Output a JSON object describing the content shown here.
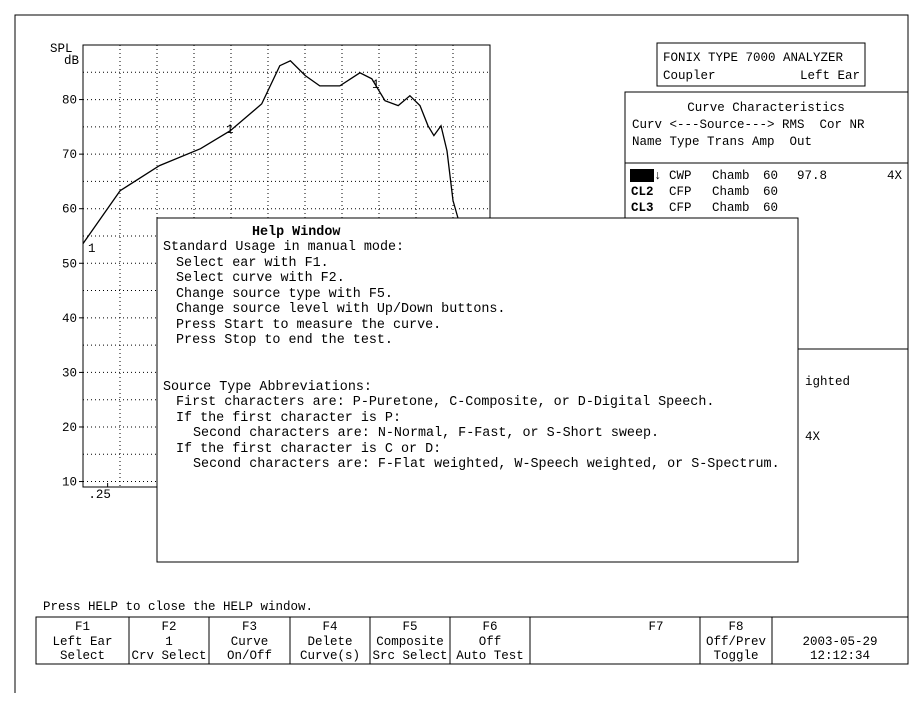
{
  "graph": {
    "y_label": [
      "SPL",
      "dB"
    ],
    "ylim": [
      9,
      90
    ],
    "yticks": [
      80,
      70,
      60,
      50,
      40,
      30,
      20,
      10
    ],
    "xlim": [
      0.2,
      8
    ],
    "xticks": [
      {
        "value": 0.25,
        "label": ".25"
      }
    ],
    "log_x": true,
    "curve": {
      "x": [
        0.2,
        0.28,
        0.4,
        0.58,
        0.76,
        1.01,
        1.19,
        1.31,
        1.5,
        1.71,
        2.05,
        2.46,
        2.74,
        3.09,
        3.48,
        3.87,
        4.24,
        4.56,
        4.81,
        5.13,
        5.42,
        5.72,
        5.99
      ],
      "values": [
        53.6,
        63.3,
        67.9,
        71,
        74.3,
        79.2,
        86.2,
        87.1,
        84.4,
        82.5,
        82.5,
        84.9,
        83.8,
        79.8,
        78.9,
        80.7,
        78.9,
        75.2,
        73.4,
        75.2,
        70.6,
        61.5,
        58.2
      ]
    },
    "curve_labels": [
      "1",
      "1",
      "1"
    ]
  },
  "analyzer": {
    "title": "FONIX TYPE 7000 ANALYZER",
    "mode": "Coupler",
    "ear": "Left Ear"
  },
  "curve_table": {
    "title": "Curve Characteristics",
    "header_1": "Curv <---Source---> RMS  Cor NR",
    "header_2": "Name Type Trans Amp  Out",
    "marker": "↓",
    "rows": [
      {
        "name": "CL1",
        "type": "CWP",
        "trans": "Chamb",
        "amp": 60,
        "rms": 97.8,
        "nr": "4X"
      },
      {
        "name": "CL2",
        "type": "CFP",
        "trans": "Chamb",
        "amp": 60
      },
      {
        "name": "CL3",
        "type": "CFP",
        "trans": "Chamb",
        "amp": 60
      }
    ]
  },
  "hidden_fragments": [
    "ighted",
    "4X"
  ],
  "help_window": {
    "title": "Help Window",
    "lines": [
      "Standard Usage in manual mode:",
      "Select ear with F1.",
      "Select curve with F2.",
      "Change source type with F5.",
      "Change source level with Up/Down buttons.",
      "Press Start to measure the curve.",
      "Press Stop to end the test.",
      "Source Type Abbreviations:",
      "First characters are: P-Puretone, C-Composite, or D-Digital Speech.",
      "If the first character is P:",
      "Second characters are: N-Normal, F-Fast, or S-Short sweep.",
      "If the first character is C or D:",
      "Second characters are: F-Flat weighted, W-Speech weighted, or S-Spectrum."
    ]
  },
  "status": "Press HELP to close the HELP window.",
  "function_keys": [
    {
      "key": "F1",
      "lines": [
        "Left Ear",
        "Select"
      ]
    },
    {
      "key": "F2",
      "lines": [
        "1",
        "Crv Select"
      ]
    },
    {
      "key": "F3",
      "lines": [
        "Curve",
        "On/Off"
      ]
    },
    {
      "key": "F4",
      "lines": [
        "Delete",
        "Curve(s)"
      ]
    },
    {
      "key": "F5",
      "lines": [
        "Composite",
        "Src Select"
      ]
    },
    {
      "key": "F6",
      "lines": [
        "Off",
        "Auto Test"
      ]
    },
    {
      "key": "F7"
    },
    {
      "key": "F8",
      "lines": [
        "Off/Prev",
        "Toggle"
      ]
    },
    {
      "lines": [
        "2003-05-29",
        "12:12:34"
      ]
    }
  ]
}
